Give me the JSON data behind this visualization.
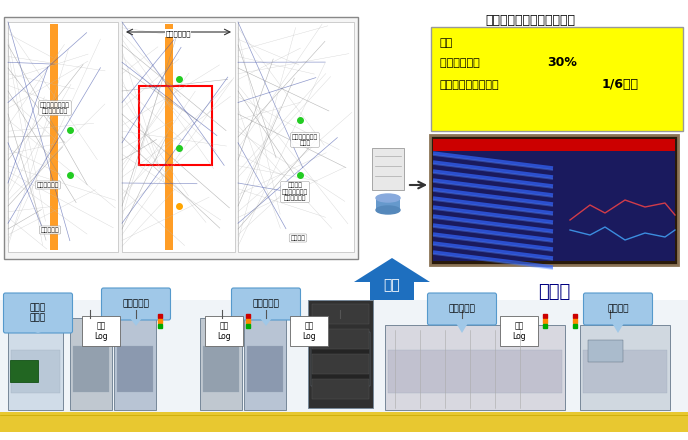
{
  "title": "（オムロン草津工場事例）",
  "effect_box": {
    "text_line1": "効果",
    "text_line2_prefix": "生産性改善：",
    "text_line2_bold": "30%",
    "text_line3_prefix": "改善点の抽出時間：",
    "text_line3_bold": "1/6以下",
    "bg_color": "#FFFF00",
    "border_color": "#888888"
  },
  "arrow_label": "直結",
  "viz_label": "可視化",
  "bg_color": "#FFFFFF",
  "callout_color": "#a0c8e8",
  "arrow_color": "#1E6FBF",
  "conveyor_color": "#E8C830"
}
